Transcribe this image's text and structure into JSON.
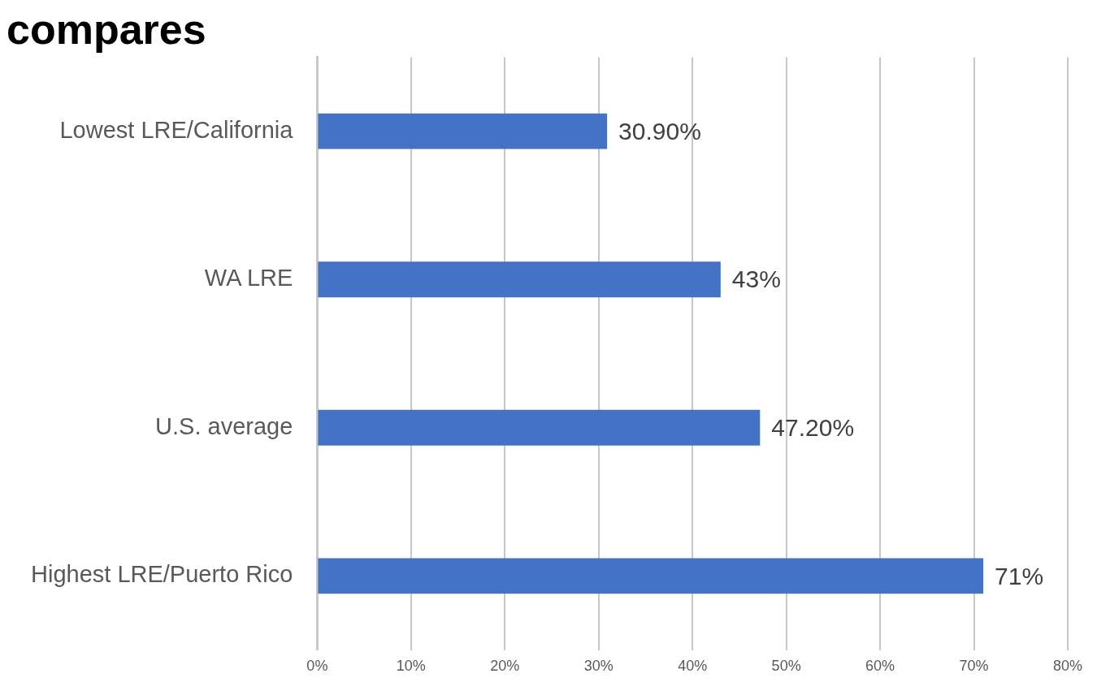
{
  "chart_data": {
    "type": "bar",
    "orientation": "horizontal",
    "title": "compares",
    "categories": [
      "Lowest LRE/California",
      "WA LRE",
      "U.S. average",
      "Highest LRE/Puerto Rico"
    ],
    "values": [
      30.9,
      43,
      47.2,
      71
    ],
    "color": "#4472c4",
    "value_labels": [
      "30.90%",
      "43%",
      "47.20%",
      "71%"
    ],
    "xlim": [
      0,
      80
    ],
    "xticks": [
      {
        "value": 0,
        "label": "0%"
      },
      {
        "value": 10,
        "label": "10%"
      },
      {
        "value": 20,
        "label": "20%"
      },
      {
        "value": 30,
        "label": "30%"
      },
      {
        "value": 40,
        "label": "40%"
      },
      {
        "value": 50,
        "label": "50%"
      },
      {
        "value": 60,
        "label": "60%"
      },
      {
        "value": 70,
        "label": "70%"
      },
      {
        "value": 80,
        "label": "80%"
      }
    ],
    "grid": "x",
    "legend": false
  }
}
